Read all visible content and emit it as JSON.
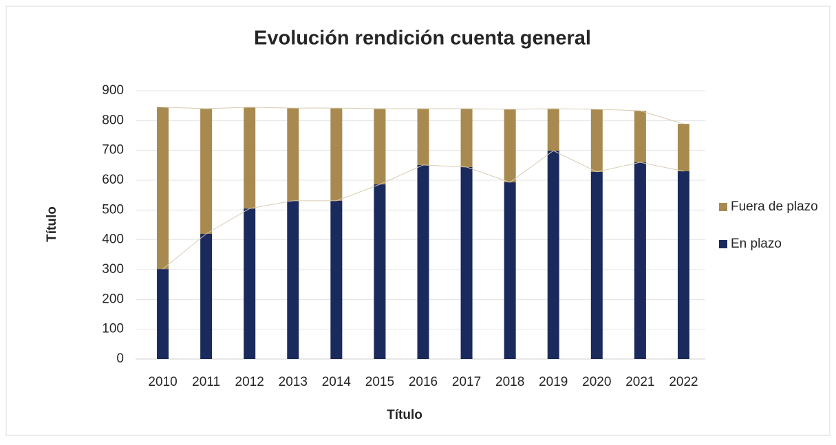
{
  "chart_data": {
    "type": "stacked_bar",
    "title": "Evolución rendición cuenta general",
    "x_label": "Título",
    "y_label": "Título",
    "categories": [
      "2010",
      "2011",
      "2012",
      "2013",
      "2014",
      "2015",
      "2016",
      "2017",
      "2018",
      "2019",
      "2020",
      "2021",
      "2022"
    ],
    "series": [
      {
        "name": "En plazo",
        "color": "#1b2a5c",
        "values": [
          302,
          420,
          505,
          531,
          531,
          586,
          651,
          644,
          593,
          699,
          628,
          660,
          630
        ]
      },
      {
        "name": "Fuera de plazo",
        "color": "#a88a50",
        "values": [
          543,
          420,
          340,
          311,
          311,
          254,
          189,
          196,
          245,
          141,
          210,
          173,
          159
        ]
      }
    ],
    "ylim": [
      0,
      900
    ],
    "yticks": [
      0,
      100,
      200,
      300,
      400,
      500,
      600,
      700,
      800,
      900
    ],
    "grid": true,
    "legend": "right"
  }
}
